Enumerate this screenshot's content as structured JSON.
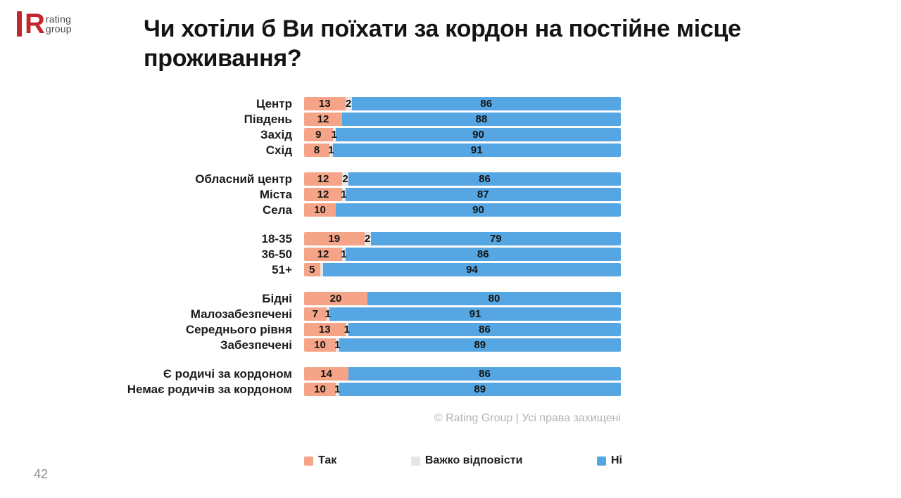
{
  "page_number": "42",
  "logo": {
    "mark": "R",
    "brand_line1": "rating",
    "brand_line2": "group",
    "accent_color": "#C1272D"
  },
  "title": "Чи хотіли б Ви поїхати за кордон на постійне місце проживання?",
  "footer": "© Rating Group | Усі права захищені",
  "legend": [
    {
      "key": "tak",
      "label": "Так",
      "color": "#F5A488"
    },
    {
      "key": "vazhko",
      "label": "Важко відповісти",
      "color": "#E6E6E6"
    },
    {
      "key": "ni",
      "label": "Ні",
      "color": "#55A6E2"
    }
  ],
  "chart_data": {
    "type": "bar",
    "orientation": "horizontal",
    "stacked": true,
    "max": 100,
    "title": "Чи хотіли б Ви поїхати за кордон на постійне місце проживання?",
    "series_names": [
      "Так",
      "Важко відповісти",
      "Ні"
    ],
    "segment_keys": [
      "tak",
      "vazhko",
      "ni"
    ],
    "colors": [
      "#F5A488",
      "#E6E6E6",
      "#55A6E2"
    ],
    "legend_position": "bottom",
    "grid": false,
    "groups": [
      {
        "name": "region",
        "rows": [
          {
            "label": "Центр",
            "values": [
              13,
              2,
              86
            ],
            "labels": [
              "13",
              "2",
              "86"
            ]
          },
          {
            "label": "Південь",
            "values": [
              12,
              0,
              88
            ],
            "labels": [
              "12",
              "",
              "88"
            ]
          },
          {
            "label": "Захід",
            "values": [
              9,
              1,
              90
            ],
            "labels": [
              "9",
              "1",
              "90"
            ]
          },
          {
            "label": "Схід",
            "values": [
              8,
              1,
              91
            ],
            "labels": [
              "8",
              "1",
              "91"
            ]
          }
        ]
      },
      {
        "name": "settlement",
        "rows": [
          {
            "label": "Обласний центр",
            "values": [
              12,
              2,
              86
            ],
            "labels": [
              "12",
              "2",
              "86"
            ]
          },
          {
            "label": "Міста",
            "values": [
              12,
              1,
              87
            ],
            "labels": [
              "12",
              "1",
              "87"
            ]
          },
          {
            "label": "Села",
            "values": [
              10,
              0,
              90
            ],
            "labels": [
              "10",
              "",
              "90"
            ]
          }
        ]
      },
      {
        "name": "age",
        "rows": [
          {
            "label": "18-35",
            "values": [
              19,
              2,
              79
            ],
            "labels": [
              "19",
              "2",
              "79"
            ]
          },
          {
            "label": "36-50",
            "values": [
              12,
              1,
              86
            ],
            "labels": [
              "12",
              "1",
              "86"
            ]
          },
          {
            "label": "51+",
            "values": [
              5,
              1,
              94
            ],
            "labels": [
              "5",
              "",
              "94"
            ]
          }
        ]
      },
      {
        "name": "income",
        "rows": [
          {
            "label": "Бідні",
            "values": [
              20,
              0,
              80
            ],
            "labels": [
              "20",
              "",
              "80"
            ]
          },
          {
            "label": "Малозабезпечені",
            "values": [
              7,
              1,
              91
            ],
            "labels": [
              "7",
              "1",
              "91"
            ]
          },
          {
            "label": "Середнього рівня",
            "values": [
              13,
              1,
              86
            ],
            "labels": [
              "13",
              "1",
              "86"
            ]
          },
          {
            "label": "Забезпечені",
            "values": [
              10,
              1,
              89
            ],
            "labels": [
              "10",
              "1",
              "89"
            ]
          }
        ]
      },
      {
        "name": "relatives-abroad",
        "rows": [
          {
            "label": "Є родичі за кордоном",
            "values": [
              14,
              0,
              86
            ],
            "labels": [
              "14",
              "",
              "86"
            ]
          },
          {
            "label": "Немає родичів за кордоном",
            "values": [
              10,
              1,
              89
            ],
            "labels": [
              "10",
              "1",
              "89"
            ]
          }
        ]
      }
    ]
  }
}
